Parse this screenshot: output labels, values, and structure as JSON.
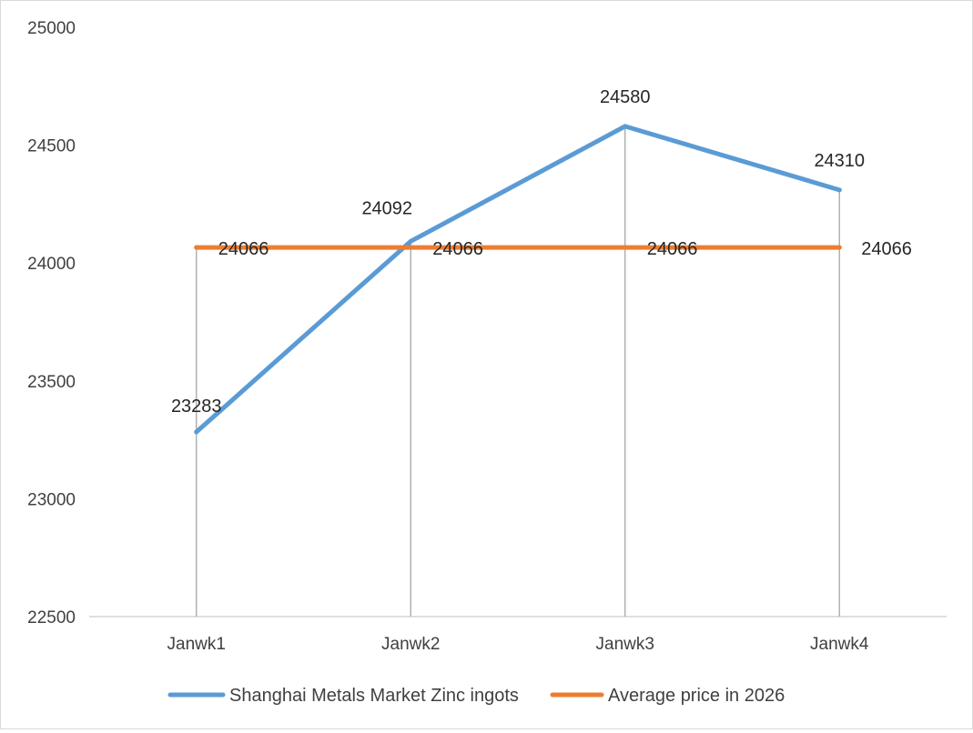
{
  "chart_data": {
    "type": "line",
    "title": "",
    "xlabel": "",
    "ylabel": "",
    "categories": [
      "Janwk1",
      "Janwk2",
      "Janwk3",
      "Janwk4"
    ],
    "ylim": [
      22500,
      25000
    ],
    "yticks": [
      22500,
      23000,
      23500,
      24000,
      24500,
      25000
    ],
    "grid": "vertical drop lines at each category",
    "legend_position": "bottom",
    "series": [
      {
        "name": "Shanghai Metals Market Zinc ingots",
        "values": [
          23283,
          24092,
          24580,
          24310
        ],
        "labels": [
          "23283",
          "24092",
          "24580",
          "24310"
        ],
        "color": "#5b9bd5"
      },
      {
        "name": "Average price in 2026",
        "values": [
          24066,
          24066,
          24066,
          24066
        ],
        "labels": [
          "24066",
          "24066",
          "24066",
          "24066"
        ],
        "color": "#ed7d31"
      }
    ]
  }
}
